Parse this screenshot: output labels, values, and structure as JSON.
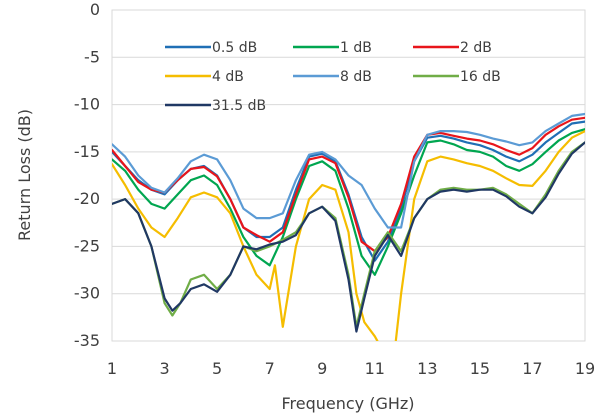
{
  "chart_data": {
    "type": "line",
    "title": "",
    "xlabel": "Frequency (GHz)",
    "ylabel": "Return Loss (dB)",
    "xlim": [
      1,
      19
    ],
    "ylim": [
      -35,
      0
    ],
    "x_ticks": [
      "1",
      "3",
      "5",
      "7",
      "9",
      "11",
      "13",
      "15",
      "17",
      "19"
    ],
    "y_ticks": [
      "0",
      "-5",
      "-10",
      "-15",
      "-20",
      "-25",
      "-30",
      "-35"
    ],
    "grid": "horizontal",
    "legend": "inside-top",
    "series": [
      {
        "name": "0.5 dB",
        "color": "#1F6FB5",
        "x": [
          1,
          1.5,
          2,
          2.5,
          3,
          3.5,
          4,
          4.5,
          5,
          5.5,
          6,
          6.5,
          7,
          7.5,
          8,
          8.5,
          9,
          9.5,
          10,
          10.5,
          11,
          11.5,
          12,
          12.5,
          13,
          13.5,
          14,
          14.5,
          15,
          15.5,
          16,
          16.5,
          17,
          17.5,
          18,
          18.5,
          19
        ],
        "y": [
          -15,
          -16.5,
          -18,
          -19,
          -19.5,
          -18,
          -16.8,
          -16.5,
          -17.5,
          -20,
          -23,
          -24,
          -24,
          -23,
          -19,
          -15.5,
          -15.2,
          -16,
          -19.5,
          -24,
          -26.5,
          -24.5,
          -21,
          -16,
          -13.5,
          -13.3,
          -13.6,
          -14,
          -14.3,
          -14.8,
          -15.5,
          -16,
          -15.3,
          -14,
          -13,
          -12,
          -11.8
        ]
      },
      {
        "name": "1 dB",
        "color": "#00A650",
        "x": [
          1,
          1.5,
          2,
          2.5,
          3,
          3.5,
          4,
          4.5,
          5,
          5.5,
          6,
          6.5,
          7,
          7.5,
          8,
          8.5,
          9,
          9.5,
          10,
          10.5,
          11,
          11.5,
          12,
          12.5,
          13,
          13.5,
          14,
          14.5,
          15,
          15.5,
          16,
          16.5,
          17,
          17.5,
          18,
          18.5,
          19
        ],
        "y": [
          -15.8,
          -17,
          -19,
          -20.5,
          -21,
          -19.5,
          -18,
          -17.5,
          -18.5,
          -21,
          -24,
          -26,
          -27,
          -24,
          -20,
          -16.5,
          -16,
          -17,
          -21,
          -26,
          -28,
          -25,
          -21.5,
          -17.5,
          -14,
          -13.8,
          -14.2,
          -14.8,
          -15,
          -15.5,
          -16.5,
          -17,
          -16.3,
          -15,
          -13.8,
          -13,
          -12.6
        ]
      },
      {
        "name": "2 dB",
        "color": "#E8151B",
        "x": [
          1,
          1.5,
          2,
          2.5,
          3,
          3.5,
          4,
          4.5,
          5,
          5.5,
          6,
          6.5,
          7,
          7.5,
          8,
          8.5,
          9,
          9.5,
          10,
          10.5,
          11,
          11.5,
          12,
          12.5,
          13,
          13.5,
          14,
          14.5,
          15,
          15.5,
          16,
          16.5,
          17,
          17.5,
          18,
          18.5,
          19
        ],
        "y": [
          -14.8,
          -16.5,
          -18.2,
          -19,
          -19.3,
          -18,
          -16.8,
          -16.6,
          -17.6,
          -20,
          -23,
          -23.8,
          -24.5,
          -23.5,
          -19.5,
          -15.8,
          -15.5,
          -16.2,
          -19.8,
          -24.5,
          -25.5,
          -24,
          -20.5,
          -15.5,
          -13.2,
          -13,
          -13.3,
          -13.6,
          -13.8,
          -14.2,
          -14.8,
          -15.3,
          -14.6,
          -13.2,
          -12.3,
          -11.6,
          -11.4
        ]
      },
      {
        "name": "4 dB",
        "color": "#F5BD00",
        "x": [
          1,
          1.5,
          2,
          2.5,
          3,
          3.5,
          4,
          4.5,
          5,
          5.5,
          6,
          6.5,
          7,
          7.2,
          7.5,
          8,
          8.5,
          9,
          9.5,
          10,
          10.3,
          10.6,
          11,
          11.3,
          11.6,
          12,
          12.5,
          13,
          13.5,
          14,
          14.5,
          15,
          15.5,
          16,
          16.5,
          17,
          17.5,
          18,
          18.5,
          19
        ],
        "y": [
          -16.3,
          -18.5,
          -21,
          -23,
          -24,
          -22,
          -19.8,
          -19.3,
          -19.8,
          -21.5,
          -25,
          -28,
          -29.5,
          -27,
          -33.5,
          -25,
          -20,
          -18.5,
          -19,
          -23.5,
          -30,
          -33,
          -34.5,
          -36,
          -40,
          -30,
          -20,
          -16,
          -15.5,
          -15.8,
          -16.2,
          -16.5,
          -17,
          -17.8,
          -18.5,
          -18.6,
          -17,
          -15,
          -13.5,
          -12.8
        ]
      },
      {
        "name": "8 dB",
        "color": "#5B9BD5",
        "x": [
          1,
          1.5,
          2,
          2.5,
          3,
          3.5,
          4,
          4.5,
          5,
          5.5,
          6,
          6.5,
          7,
          7.5,
          8,
          8.5,
          9,
          9.5,
          10,
          10.5,
          11,
          11.5,
          12,
          12.5,
          13,
          13.5,
          14,
          14.5,
          15,
          15.5,
          16,
          16.5,
          17,
          17.5,
          18,
          18.5,
          19
        ],
        "y": [
          -14.2,
          -15.5,
          -17.5,
          -18.8,
          -19.3,
          -17.8,
          -16,
          -15.3,
          -15.8,
          -18,
          -21,
          -22,
          -22,
          -21.5,
          -18,
          -15.3,
          -15,
          -15.8,
          -17.5,
          -18.5,
          -21,
          -23,
          -23,
          -16,
          -13.2,
          -12.8,
          -12.8,
          -12.9,
          -13.2,
          -13.6,
          -13.9,
          -14.3,
          -14,
          -12.8,
          -12,
          -11.2,
          -11
        ]
      },
      {
        "name": "16 dB",
        "color": "#70AD47",
        "x": [
          1,
          1.5,
          2,
          2.5,
          3,
          3.3,
          3.6,
          4,
          4.5,
          5,
          5.5,
          6,
          6.5,
          7,
          7.5,
          8,
          8.5,
          9,
          9.5,
          10,
          10.3,
          10.6,
          11,
          11.5,
          12,
          12.5,
          13,
          13.5,
          14,
          14.5,
          15,
          15.5,
          16,
          16.5,
          17,
          17.5,
          18,
          18.5,
          19
        ],
        "y": [
          -20.5,
          -20,
          -21.5,
          -25,
          -31,
          -32.3,
          -31,
          -28.5,
          -28,
          -29.5,
          -28,
          -25,
          -25.5,
          -25,
          -24.3,
          -23.5,
          -21.5,
          -20.8,
          -22,
          -28,
          -33.5,
          -30,
          -25.5,
          -23.5,
          -25.5,
          -22,
          -20,
          -19,
          -18.8,
          -19,
          -19,
          -18.8,
          -19.5,
          -20.5,
          -21.5,
          -19.5,
          -17,
          -15,
          -14
        ]
      },
      {
        "name": "31.5 dB",
        "color": "#203864",
        "x": [
          1,
          1.5,
          2,
          2.5,
          3,
          3.3,
          3.6,
          4,
          4.5,
          5,
          5.5,
          6,
          6.5,
          7,
          7.5,
          8,
          8.5,
          9,
          9.5,
          10,
          10.3,
          10.6,
          11,
          11.5,
          12,
          12.5,
          13,
          13.5,
          14,
          14.5,
          15,
          15.5,
          16,
          16.5,
          17,
          17.5,
          18,
          18.5,
          19
        ],
        "y": [
          -20.5,
          -20,
          -21.5,
          -25,
          -30.5,
          -31.8,
          -31,
          -29.5,
          -29,
          -29.8,
          -28,
          -25,
          -25.3,
          -24.8,
          -24.5,
          -23.8,
          -21.5,
          -20.8,
          -22.3,
          -28.5,
          -34,
          -30.5,
          -26,
          -23.8,
          -26,
          -22,
          -20,
          -19.2,
          -19,
          -19.2,
          -19,
          -19,
          -19.7,
          -20.8,
          -21.5,
          -19.8,
          -17.3,
          -15.2,
          -14
        ]
      }
    ]
  }
}
